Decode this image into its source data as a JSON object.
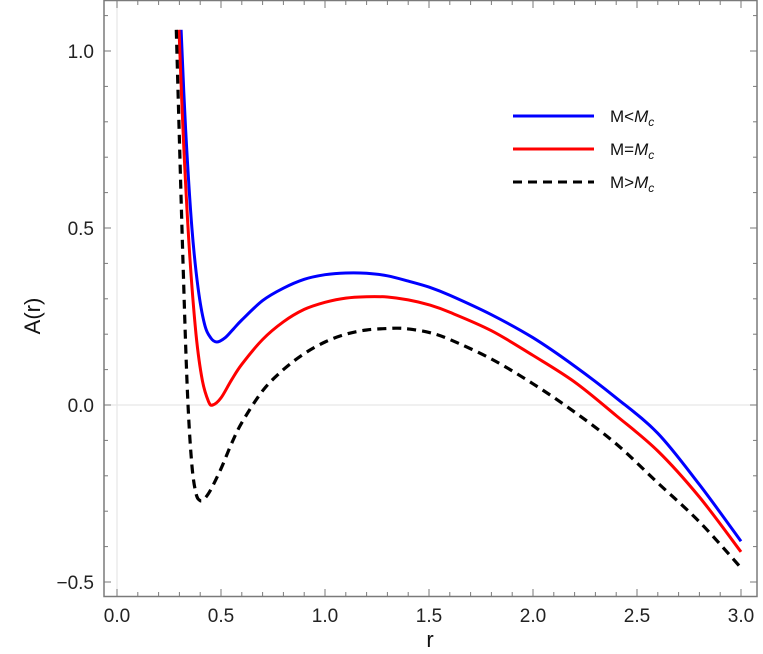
{
  "chart_data": {
    "type": "line",
    "title": "",
    "xlabel": "r",
    "ylabel": "A(r)",
    "xlim": [
      -0.06,
      3.06
    ],
    "ylim": [
      -0.54,
      1.145
    ],
    "x_ticks": [
      0.0,
      0.5,
      1.0,
      1.5,
      2.0,
      2.5,
      3.0
    ],
    "x_tick_labels": [
      "0.0",
      "0.5",
      "1.0",
      "1.5",
      "2.0",
      "2.5",
      "3.0"
    ],
    "y_ticks": [
      -0.5,
      0.0,
      0.5,
      1.0
    ],
    "y_tick_labels": [
      "−0.5",
      "0.0",
      "0.5",
      "1.0"
    ],
    "grid": "light lines at x=0 and y=0 only",
    "legend_position": "upper right (inside)",
    "series": [
      {
        "name": "M<M_c",
        "label_main": "M<",
        "label_sub": "M",
        "label_subscript": "c",
        "color": "#0000ff",
        "dash": "solid",
        "x": [
          0.308,
          0.33,
          0.36,
          0.39,
          0.42,
          0.45,
          0.48,
          0.52,
          0.56,
          0.6,
          0.7,
          0.8,
          0.9,
          1.0,
          1.1,
          1.2,
          1.3,
          1.4,
          1.5,
          1.6,
          1.8,
          2.0,
          2.2,
          2.4,
          2.6,
          2.8,
          3.0
        ],
        "y": [
          1.06,
          0.78,
          0.5,
          0.33,
          0.23,
          0.19,
          0.178,
          0.19,
          0.215,
          0.24,
          0.295,
          0.33,
          0.355,
          0.368,
          0.373,
          0.372,
          0.365,
          0.35,
          0.333,
          0.31,
          0.255,
          0.19,
          0.11,
          0.02,
          -0.08,
          -0.225,
          -0.385
        ]
      },
      {
        "name": "M=M_c",
        "label_main": "M=",
        "label_sub": "M",
        "label_subscript": "c",
        "color": "#ff0000",
        "dash": "solid",
        "x": [
          0.298,
          0.32,
          0.35,
          0.38,
          0.41,
          0.44,
          0.46,
          0.5,
          0.55,
          0.6,
          0.7,
          0.8,
          0.9,
          1.0,
          1.1,
          1.2,
          1.3,
          1.4,
          1.5,
          1.6,
          1.8,
          2.0,
          2.2,
          2.4,
          2.6,
          2.8,
          3.0
        ],
        "y": [
          1.06,
          0.74,
          0.42,
          0.2,
          0.07,
          0.01,
          0.0,
          0.02,
          0.07,
          0.115,
          0.185,
          0.235,
          0.27,
          0.29,
          0.302,
          0.306,
          0.305,
          0.297,
          0.283,
          0.262,
          0.21,
          0.14,
          0.065,
          -0.03,
          -0.13,
          -0.26,
          -0.415
        ]
      },
      {
        "name": "M>M_c",
        "label_main": "M>",
        "label_sub": "M",
        "label_subscript": "c",
        "color": "#000000",
        "dash": "dashed",
        "x": [
          0.285,
          0.3,
          0.32,
          0.34,
          0.36,
          0.38,
          0.4,
          0.42,
          0.45,
          0.5,
          0.55,
          0.6,
          0.7,
          0.8,
          0.9,
          1.0,
          1.1,
          1.2,
          1.3,
          1.35,
          1.4,
          1.5,
          1.6,
          1.8,
          2.0,
          2.2,
          2.4,
          2.6,
          2.8,
          3.0
        ],
        "y": [
          1.06,
          0.75,
          0.35,
          0.02,
          -0.17,
          -0.25,
          -0.27,
          -0.265,
          -0.24,
          -0.18,
          -0.11,
          -0.05,
          0.04,
          0.1,
          0.145,
          0.178,
          0.2,
          0.212,
          0.216,
          0.217,
          0.215,
          0.205,
          0.185,
          0.13,
          0.06,
          -0.02,
          -0.11,
          -0.22,
          -0.33,
          -0.46
        ]
      }
    ]
  }
}
